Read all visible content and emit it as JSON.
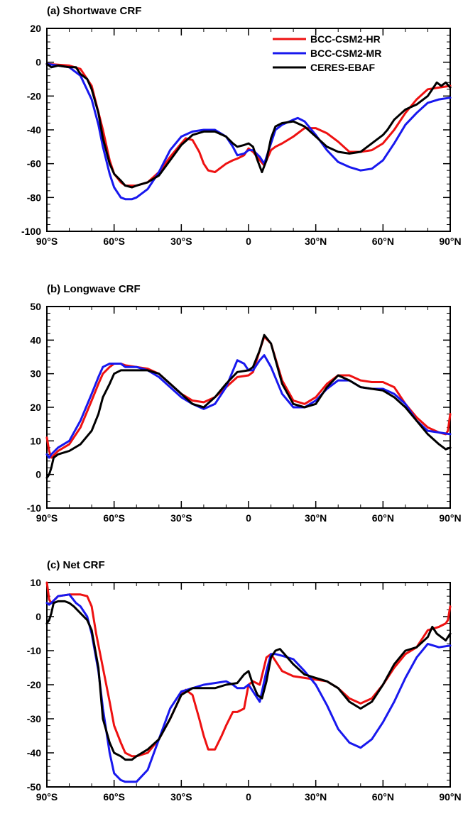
{
  "chart_data": [
    {
      "type": "line",
      "title": "(a) Shortwave CRF",
      "xlim": [
        -90,
        90
      ],
      "ylim": [
        -100,
        20
      ],
      "x_ticks": [
        -90,
        -60,
        -30,
        0,
        30,
        60,
        90
      ],
      "x_tick_labels": [
        "90°S",
        "60°S",
        "30°S",
        "0",
        "30°N",
        "60°N",
        "90°N"
      ],
      "y_ticks": [
        -100,
        -80,
        -60,
        -40,
        -20,
        0,
        20
      ],
      "y_tick_labels": [
        "-100",
        "-80",
        "-60",
        "-40",
        "-20",
        "0",
        "20"
      ],
      "legend": "top-right",
      "series": [
        {
          "name": "BCC-CSM2-HR",
          "color": "#ee1111",
          "x": [
            -90,
            -80,
            -75,
            -70,
            -65,
            -62,
            -60,
            -57,
            -55,
            -52,
            -50,
            -45,
            -40,
            -35,
            -30,
            -28,
            -25,
            -22,
            -20,
            -18,
            -15,
            -12,
            -10,
            -7,
            -5,
            -2,
            0,
            2,
            5,
            7,
            10,
            12,
            15,
            20,
            25,
            30,
            35,
            40,
            45,
            50,
            55,
            60,
            65,
            70,
            75,
            80,
            85,
            90
          ],
          "y": [
            -1,
            -2,
            -4,
            -14,
            -40,
            -58,
            -66,
            -71,
            -73,
            -73,
            -73,
            -71,
            -65,
            -56,
            -48,
            -45,
            -46,
            -53,
            -60,
            -64,
            -65,
            -62,
            -60,
            -58,
            -57,
            -55,
            -51,
            -53,
            -58,
            -61,
            -52,
            -50,
            -48,
            -44,
            -39,
            -39,
            -42,
            -47,
            -53,
            -53,
            -52,
            -48,
            -40,
            -30,
            -22,
            -16,
            -15,
            -14
          ]
        },
        {
          "name": "BCC-CSM2-MR",
          "color": "#1818ee",
          "x": [
            -90,
            -80,
            -75,
            -70,
            -67,
            -65,
            -62,
            -60,
            -57,
            -55,
            -52,
            -50,
            -45,
            -40,
            -35,
            -30,
            -25,
            -20,
            -15,
            -10,
            -7,
            -5,
            -2,
            0,
            2,
            5,
            7,
            10,
            12,
            15,
            20,
            22,
            25,
            30,
            35,
            40,
            45,
            50,
            55,
            60,
            65,
            70,
            75,
            80,
            85,
            90
          ],
          "y": [
            -1,
            -3,
            -8,
            -22,
            -37,
            -50,
            -66,
            -74,
            -80,
            -81,
            -81,
            -80,
            -75,
            -65,
            -52,
            -44,
            -41,
            -40,
            -40,
            -44,
            -50,
            -55,
            -54,
            -52,
            -52,
            -56,
            -60,
            -48,
            -40,
            -37,
            -34,
            -33,
            -35,
            -43,
            -52,
            -59,
            -62,
            -64,
            -63,
            -58,
            -48,
            -37,
            -30,
            -24,
            -22,
            -21
          ]
        },
        {
          "name": "CERES-EBAF",
          "color": "#000000",
          "x": [
            -90,
            -88,
            -85,
            -80,
            -77,
            -75,
            -72,
            -70,
            -67,
            -65,
            -62,
            -60,
            -57,
            -55,
            -52,
            -50,
            -45,
            -40,
            -35,
            -30,
            -25,
            -20,
            -15,
            -10,
            -7,
            -5,
            -2,
            0,
            2,
            4,
            6,
            8,
            10,
            12,
            15,
            20,
            25,
            30,
            35,
            40,
            45,
            50,
            55,
            60,
            62,
            65,
            70,
            75,
            80,
            82,
            84,
            86,
            88,
            90
          ],
          "y": [
            -1,
            -3,
            -2,
            -3,
            -3,
            -7,
            -10,
            -16,
            -30,
            -45,
            -60,
            -66,
            -70,
            -73,
            -74,
            -73,
            -71,
            -67,
            -58,
            -49,
            -43,
            -41,
            -41,
            -44,
            -48,
            -50,
            -49,
            -48,
            -50,
            -58,
            -65,
            -58,
            -45,
            -38,
            -36,
            -35,
            -38,
            -44,
            -50,
            -53,
            -54,
            -53,
            -48,
            -43,
            -40,
            -34,
            -28,
            -25,
            -20,
            -16,
            -12,
            -14,
            -12,
            -15
          ]
        }
      ]
    },
    {
      "type": "line",
      "title": "(b) Longwave CRF",
      "xlim": [
        -90,
        90
      ],
      "ylim": [
        -10,
        50
      ],
      "x_ticks": [
        -90,
        -60,
        -30,
        0,
        30,
        60,
        90
      ],
      "x_tick_labels": [
        "90°S",
        "60°S",
        "30°S",
        "0",
        "30°N",
        "60°N",
        "90°N"
      ],
      "y_ticks": [
        -10,
        0,
        10,
        20,
        30,
        40,
        50
      ],
      "y_tick_labels": [
        "-10",
        "0",
        "10",
        "20",
        "30",
        "40",
        "50"
      ],
      "series": [
        {
          "name": "BCC-CSM2-HR",
          "color": "#ee1111",
          "x": [
            -90,
            -89,
            -88,
            -85,
            -80,
            -75,
            -70,
            -67,
            -65,
            -62,
            -60,
            -57,
            -55,
            -50,
            -45,
            -40,
            -35,
            -30,
            -25,
            -20,
            -15,
            -10,
            -5,
            0,
            2,
            5,
            7,
            10,
            15,
            20,
            25,
            30,
            35,
            40,
            45,
            50,
            55,
            60,
            65,
            70,
            75,
            80,
            85,
            88,
            89,
            90
          ],
          "y": [
            11,
            7,
            5,
            7,
            9,
            14,
            22,
            27,
            30,
            32,
            33,
            33,
            32.5,
            32,
            31.5,
            30,
            27,
            24,
            22,
            21.5,
            23,
            26,
            29,
            29.5,
            30.5,
            37,
            41,
            39,
            28,
            22,
            21,
            23,
            27,
            29.5,
            29.5,
            28,
            27.5,
            27.5,
            26,
            21,
            17,
            14,
            12.5,
            12,
            13,
            18
          ]
        },
        {
          "name": "BCC-CSM2-MR",
          "color": "#1818ee",
          "x": [
            -90,
            -89,
            -88,
            -85,
            -80,
            -75,
            -70,
            -67,
            -65,
            -62,
            -60,
            -57,
            -55,
            -50,
            -45,
            -40,
            -35,
            -30,
            -25,
            -20,
            -15,
            -10,
            -5,
            -2,
            0,
            2,
            5,
            7,
            10,
            15,
            20,
            25,
            30,
            35,
            40,
            45,
            50,
            55,
            60,
            65,
            70,
            75,
            80,
            85,
            90
          ],
          "y": [
            6,
            5,
            6,
            8,
            10,
            16,
            24,
            29,
            32,
            33,
            33,
            33,
            32,
            32,
            31,
            29,
            26,
            23,
            21,
            19.5,
            21,
            26,
            34,
            33,
            31,
            31,
            34,
            35.5,
            32,
            24,
            20,
            20,
            22,
            25.5,
            28,
            28,
            26,
            25.5,
            25.5,
            24,
            21,
            16,
            13,
            12.5,
            12
          ]
        },
        {
          "name": "CERES-EBAF",
          "color": "#000000",
          "x": [
            -90,
            -89,
            -88,
            -87,
            -85,
            -80,
            -75,
            -70,
            -67,
            -65,
            -62,
            -60,
            -57,
            -55,
            -52,
            -50,
            -45,
            -40,
            -35,
            -30,
            -25,
            -20,
            -15,
            -10,
            -5,
            0,
            2,
            5,
            7,
            10,
            15,
            20,
            25,
            30,
            35,
            40,
            45,
            50,
            55,
            60,
            65,
            70,
            75,
            80,
            85,
            88,
            90
          ],
          "y": [
            -1,
            0,
            2,
            5,
            6,
            7,
            9,
            13,
            18,
            23,
            27,
            30,
            31,
            31,
            31,
            31,
            31,
            30,
            27,
            24,
            21,
            20,
            23,
            27,
            30.5,
            31,
            32,
            37,
            41.5,
            39,
            27,
            21,
            20,
            21,
            26,
            29.5,
            28,
            26,
            25.5,
            25,
            23,
            20,
            16,
            12,
            9,
            7.5,
            8
          ]
        }
      ]
    },
    {
      "type": "line",
      "title": "(c) Net CRF",
      "xlim": [
        -90,
        90
      ],
      "ylim": [
        -50,
        10
      ],
      "x_ticks": [
        -90,
        -60,
        -30,
        0,
        30,
        60,
        90
      ],
      "x_tick_labels": [
        "90°S",
        "60°S",
        "30°S",
        "0",
        "30°N",
        "60°N",
        "90°N"
      ],
      "y_ticks": [
        -50,
        -40,
        -30,
        -20,
        -10,
        0,
        10
      ],
      "y_tick_labels": [
        "-50",
        "-40",
        "-30",
        "-20",
        "-10",
        "0",
        "10"
      ],
      "series": [
        {
          "name": "BCC-CSM2-HR",
          "color": "#ee1111",
          "x": [
            -90,
            -89,
            -88,
            -85,
            -80,
            -75,
            -72,
            -70,
            -68,
            -65,
            -62,
            -60,
            -57,
            -55,
            -52,
            -50,
            -45,
            -40,
            -35,
            -30,
            -28,
            -25,
            -22,
            -20,
            -18,
            -15,
            -12,
            -10,
            -7,
            -5,
            -2,
            0,
            2,
            5,
            8,
            10,
            12,
            15,
            20,
            25,
            30,
            35,
            40,
            45,
            50,
            55,
            60,
            65,
            70,
            75,
            80,
            85,
            88,
            89,
            90
          ],
          "y": [
            10,
            5,
            4,
            6,
            6.5,
            6.5,
            6,
            3,
            -5,
            -15,
            -25,
            -32,
            -37,
            -40,
            -41,
            -41,
            -40,
            -36,
            -30,
            -23,
            -21.5,
            -23,
            -30,
            -35,
            -39,
            -39,
            -35,
            -32,
            -28,
            -28,
            -27,
            -20,
            -19,
            -20,
            -12,
            -11,
            -13,
            -16,
            -17.5,
            -18,
            -18.5,
            -19,
            -21,
            -24,
            -25.5,
            -24,
            -20,
            -15,
            -11,
            -9,
            -4,
            -3,
            -2,
            -1,
            3
          ]
        },
        {
          "name": "BCC-CSM2-MR",
          "color": "#1818ee",
          "x": [
            -90,
            -89,
            -88,
            -85,
            -80,
            -77,
            -75,
            -72,
            -70,
            -67,
            -65,
            -62,
            -60,
            -57,
            -55,
            -52,
            -50,
            -45,
            -40,
            -35,
            -30,
            -25,
            -20,
            -15,
            -10,
            -7,
            -5,
            -2,
            0,
            2,
            5,
            8,
            10,
            12,
            15,
            20,
            25,
            30,
            35,
            40,
            45,
            50,
            55,
            60,
            65,
            70,
            75,
            80,
            85,
            90
          ],
          "y": [
            4,
            3.5,
            4,
            6,
            6.5,
            4,
            3,
            0,
            -5,
            -16,
            -27,
            -40,
            -46,
            -48,
            -48.5,
            -48.5,
            -48.5,
            -45,
            -36,
            -27,
            -22,
            -21,
            -20,
            -19.5,
            -19,
            -20,
            -21,
            -21,
            -20,
            -22,
            -25,
            -16,
            -11,
            -11,
            -11.5,
            -12.5,
            -16,
            -20,
            -26,
            -33,
            -37,
            -38.5,
            -36,
            -31,
            -25,
            -18,
            -12,
            -8,
            -9,
            -8.5
          ]
        },
        {
          "name": "CERES-EBAF",
          "color": "#000000",
          "x": [
            -90,
            -89,
            -88,
            -87,
            -85,
            -82,
            -80,
            -78,
            -75,
            -72,
            -70,
            -67,
            -65,
            -62,
            -60,
            -57,
            -55,
            -52,
            -50,
            -45,
            -40,
            -35,
            -30,
            -25,
            -20,
            -15,
            -10,
            -5,
            -2,
            0,
            2,
            4,
            6,
            8,
            10,
            12,
            14,
            16,
            20,
            25,
            30,
            35,
            40,
            45,
            50,
            55,
            60,
            65,
            70,
            75,
            80,
            82,
            84,
            86,
            88,
            90
          ],
          "y": [
            -2,
            -1,
            1,
            4,
            4.5,
            4.5,
            4,
            3,
            1,
            -1,
            -4,
            -15,
            -30,
            -37,
            -40,
            -41,
            -42,
            -42,
            -41,
            -39,
            -36,
            -30,
            -23,
            -21,
            -21,
            -21,
            -20,
            -19.5,
            -17,
            -16,
            -20,
            -23,
            -24,
            -19,
            -12,
            -10,
            -9.5,
            -11,
            -14,
            -17,
            -18,
            -19,
            -21,
            -25,
            -27,
            -25,
            -20,
            -14,
            -10,
            -9,
            -6,
            -3,
            -5,
            -6,
            -7,
            -5
          ]
        }
      ]
    }
  ]
}
